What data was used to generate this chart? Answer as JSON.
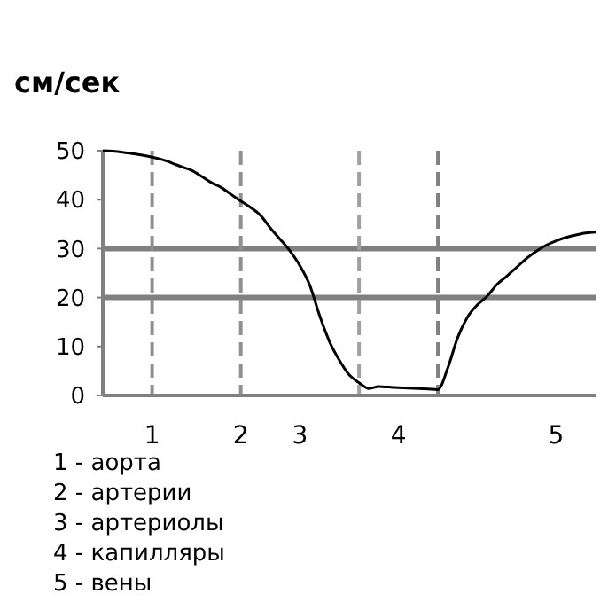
{
  "chart_data": {
    "type": "line",
    "ylabel": "см/сек",
    "ylim": [
      0,
      50
    ],
    "yticks": [
      0,
      10,
      20,
      30,
      40,
      50
    ],
    "categories": [
      null,
      null,
      null,
      null,
      null,
      "1",
      null,
      null,
      null,
      null,
      null,
      null,
      null,
      null,
      "2",
      null,
      null,
      null,
      null,
      null,
      "3",
      null,
      null,
      null,
      null,
      null,
      null,
      null,
      null,
      null,
      "4",
      null,
      null,
      null,
      null,
      null,
      null,
      null,
      null,
      null,
      null,
      null,
      null,
      null,
      null,
      null,
      "5",
      null,
      null,
      null,
      null
    ],
    "series": [
      {
        "color": "#000000",
        "values": [
          50,
          49.9,
          49.7,
          49.4,
          49.1,
          48.7,
          48.2,
          47.5,
          46.7,
          46,
          44.8,
          43.5,
          42.5,
          41.1,
          39.7,
          38.4,
          36.8,
          34.2,
          31.9,
          29.5,
          26.5,
          22.5,
          16.3,
          11,
          7.2,
          4.2,
          2.6,
          1.4,
          1.8,
          1.7,
          1.6,
          1.5,
          1.4,
          1.3,
          1.2,
          5.6,
          11.8,
          16,
          18.5,
          20.3,
          22.7,
          24.4,
          26.2,
          28,
          29.5,
          30.7,
          31.6,
          32.3,
          32.8,
          33.2,
          33.4
        ]
      }
    ],
    "ref_lines": [
      {
        "axis": "y",
        "value": 20,
        "color": "#808080",
        "line_style": "solid"
      },
      {
        "axis": "y",
        "value": 30,
        "color": "#808080",
        "line_style": "solid"
      }
    ],
    "grid": false,
    "marker": "none",
    "line_style": "solid",
    "annotations": [
      "1 - аорта",
      "2 - артерии",
      "3 - артериолы",
      "4 - капилляры",
      "5 - вены"
    ]
  }
}
